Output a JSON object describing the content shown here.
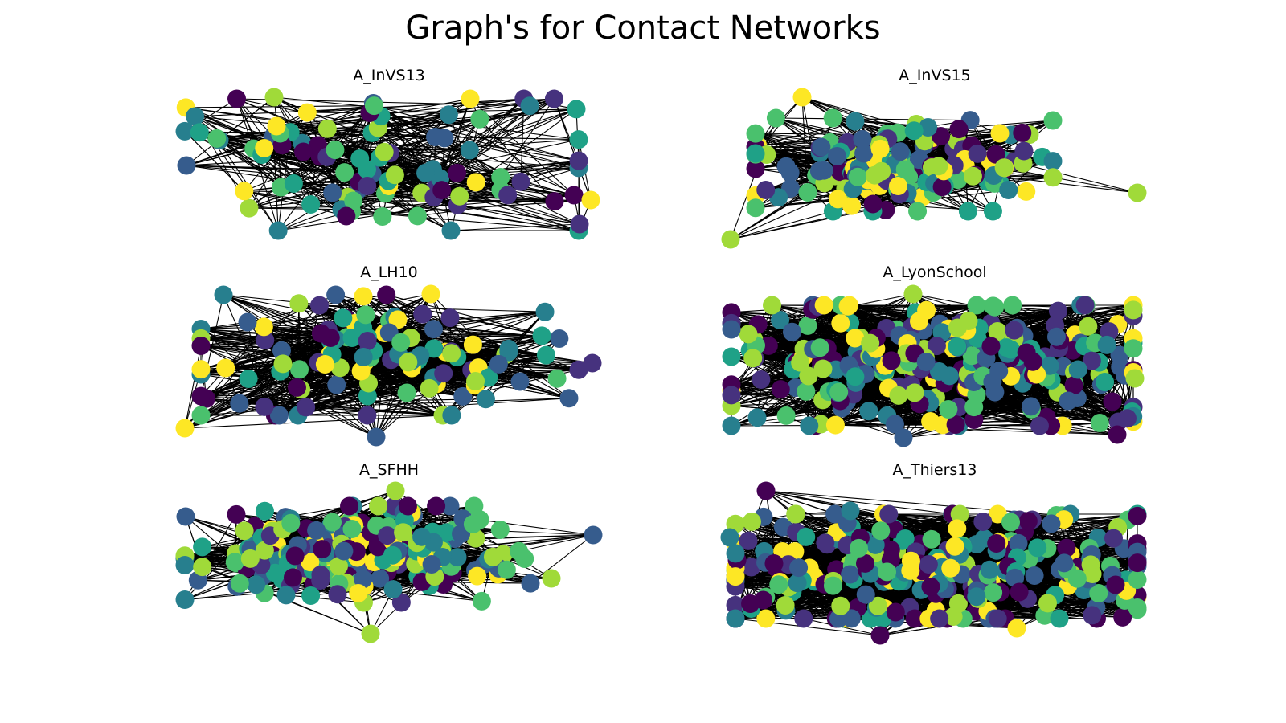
{
  "title": "Graph's for Contact Networks",
  "colormap": {
    "name": "viridis",
    "stops": [
      "#440154",
      "#46327e",
      "#365c8d",
      "#277f8e",
      "#1fa187",
      "#4ac16d",
      "#a0da39",
      "#fde725"
    ]
  },
  "edge_color": "#000000",
  "panels": [
    {
      "name": "A_InVS13",
      "density": "sparse"
    },
    {
      "name": "A_InVS15",
      "density": "dense-core"
    },
    {
      "name": "A_LH10",
      "density": "medium"
    },
    {
      "name": "A_LyonSchool",
      "density": "very-dense"
    },
    {
      "name": "A_SFHH",
      "density": "dense-core"
    },
    {
      "name": "A_Thiers13",
      "density": "very-dense"
    }
  ]
}
